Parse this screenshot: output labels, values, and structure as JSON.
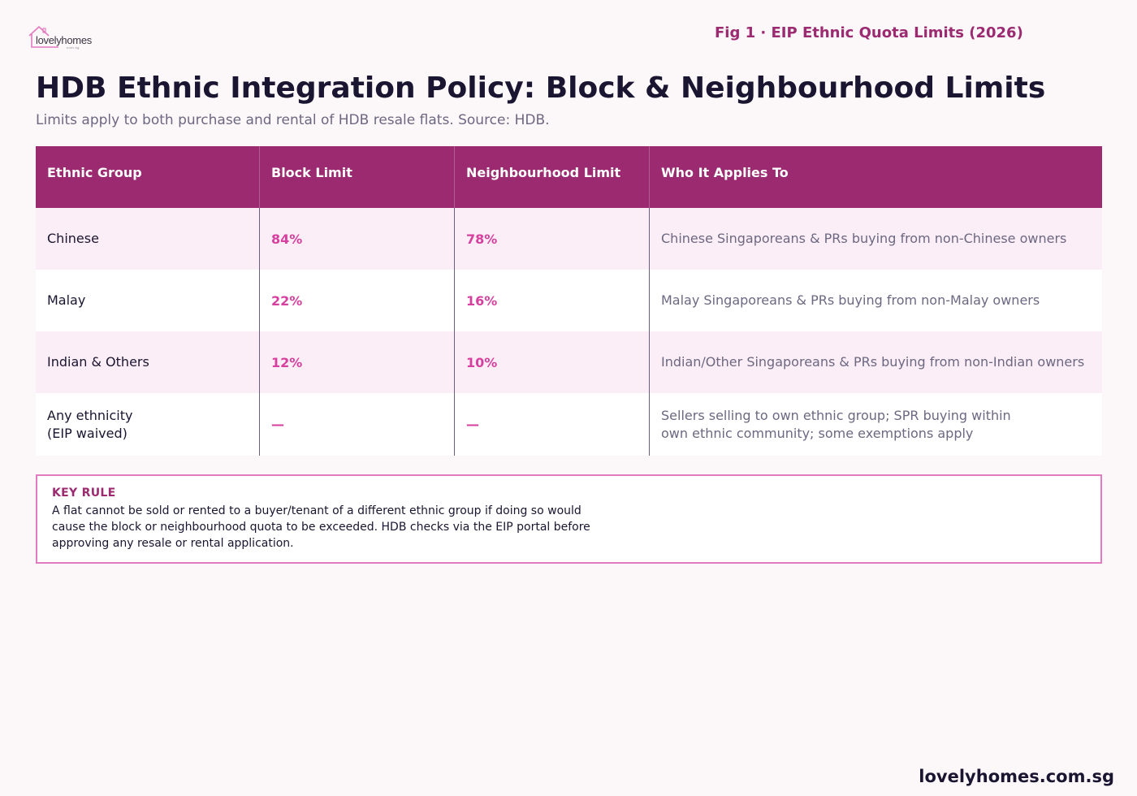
{
  "logo": {
    "text": "lovelyhomes",
    "sub": "com.sg"
  },
  "fig_label": "Fig 1 · EIP Ethnic Quota Limits (2026)",
  "title": "HDB Ethnic Integration Policy: Block & Neighbourhood Limits",
  "subtitle": "Limits apply to both purchase and rental of HDB resale flats. Source: HDB.",
  "table": {
    "headers": [
      "Ethnic Group",
      "Block Limit",
      "Neighbourhood Limit",
      "Who It Applies To"
    ],
    "rows": [
      {
        "group": "Chinese",
        "block": "84%",
        "neighbourhood": "78%",
        "applies": "Chinese Singaporeans & PRs buying from non-Chinese owners"
      },
      {
        "group": "Malay",
        "block": "22%",
        "neighbourhood": "16%",
        "applies": "Malay Singaporeans & PRs buying from non-Malay owners"
      },
      {
        "group": "Indian & Others",
        "block": "12%",
        "neighbourhood": "10%",
        "applies": "Indian/Other Singaporeans & PRs buying from non-Indian owners"
      },
      {
        "group_line1": "Any ethnicity",
        "group_line2": "(EIP waived)",
        "block": "—",
        "neighbourhood": "—",
        "applies_line1": "Sellers selling to own ethnic group; SPR buying within",
        "applies_line2": "own ethnic community; some exemptions apply"
      }
    ]
  },
  "key_rule": {
    "title": "KEY RULE",
    "body": "A flat cannot be sold or rented to a buyer/tenant of a different ethnic group if doing so would cause the block or neighbourhood quota to be exceeded. HDB checks via the EIP portal before approving any resale or rental application."
  },
  "footer": "lovelyhomes.com.sg",
  "colors": {
    "primary": "#9b2a70",
    "accent": "#d6409e",
    "border": "#e27bc0",
    "background": "#fcf7f9"
  }
}
